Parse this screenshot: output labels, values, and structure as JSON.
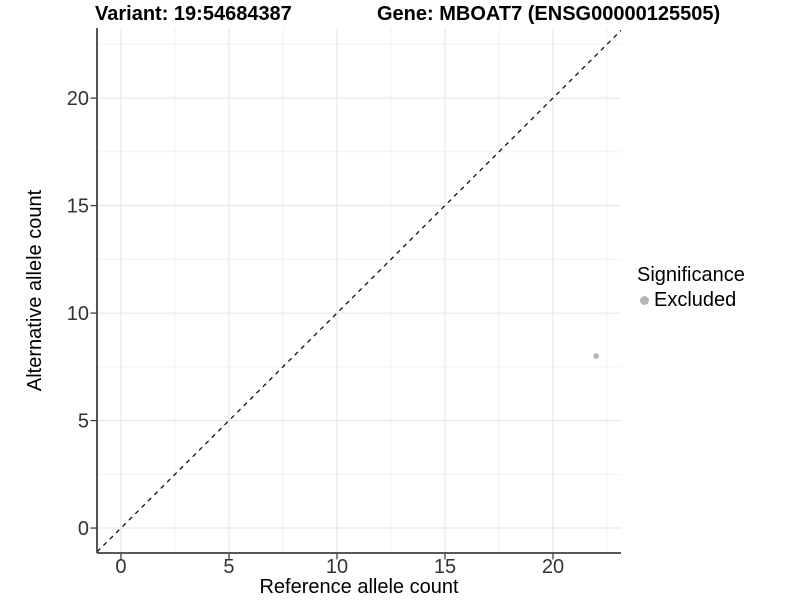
{
  "chart_data": {
    "type": "scatter",
    "title_left": "Variant: 19:54684387",
    "title_right": "Gene: MBOAT7 (ENSG00000125505)",
    "xlabel": "Reference allele count",
    "ylabel": "Alternative allele count",
    "xlim": [
      -1.11,
      23.15
    ],
    "ylim": [
      -1.16,
      23.26
    ],
    "x_ticks": [
      0,
      5,
      10,
      15,
      20
    ],
    "y_ticks": [
      0,
      5,
      10,
      15,
      20
    ],
    "x_minor_ticks": [
      2.5,
      7.5,
      12.5,
      17.5,
      22.5
    ],
    "y_minor_ticks": [
      2.5,
      7.5,
      12.5,
      17.5,
      22.5
    ],
    "grid": "major+minor",
    "reference_line": {
      "kind": "identity y=x",
      "style": "dashed",
      "color": "#111111"
    },
    "series": [
      {
        "name": "Excluded",
        "color": "#b6b6b6",
        "points": [
          {
            "x": 22,
            "y": 8
          }
        ]
      }
    ],
    "legend": {
      "position": "right",
      "title": "Significance",
      "entries": [
        {
          "label": "Excluded",
          "color": "#b6b6b6",
          "marker": "circle"
        }
      ]
    },
    "colors": {
      "background": "#ffffff",
      "grid_major": "#e3e3e3",
      "grid_minor": "#f1f1f1",
      "axis_line": "#404040",
      "tick_label": "#333333",
      "point": "#b6b6b6"
    }
  }
}
